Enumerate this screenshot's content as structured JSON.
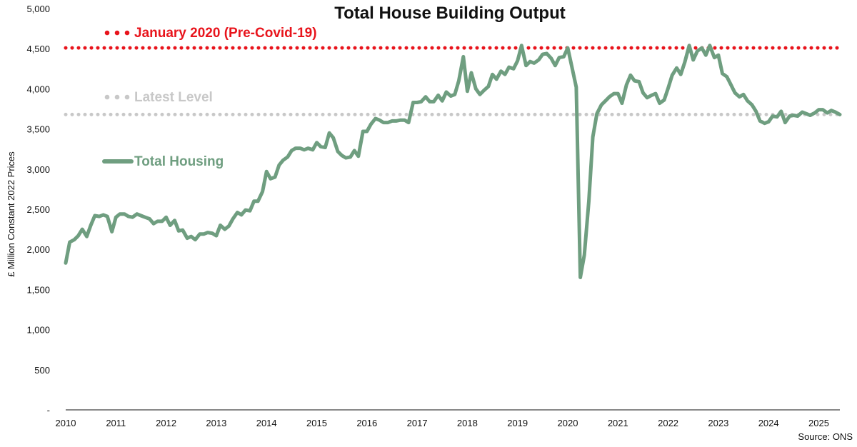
{
  "chart_data": {
    "type": "line",
    "title": "Total House Building Output",
    "ylabel": "£ Million Constant 2022 Prices",
    "xlabel": "",
    "ylim": [
      0,
      5000
    ],
    "xlim": [
      2010,
      2025.42
    ],
    "y_ticks": [
      {
        "value": 0,
        "label": "-"
      },
      {
        "value": 500,
        "label": "500"
      },
      {
        "value": 1000,
        "label": "1,000"
      },
      {
        "value": 1500,
        "label": "1,500"
      },
      {
        "value": 2000,
        "label": "2,000"
      },
      {
        "value": 2500,
        "label": "2,500"
      },
      {
        "value": 3000,
        "label": "3,000"
      },
      {
        "value": 3500,
        "label": "3,500"
      },
      {
        "value": 4000,
        "label": "4,000"
      },
      {
        "value": 4500,
        "label": "4,500"
      },
      {
        "value": 5000,
        "label": "5,000"
      }
    ],
    "x_ticks": [
      {
        "value": 2010,
        "label": "2010"
      },
      {
        "value": 2011,
        "label": "2011"
      },
      {
        "value": 2012,
        "label": "2012"
      },
      {
        "value": 2013,
        "label": "2013"
      },
      {
        "value": 2014,
        "label": "2014"
      },
      {
        "value": 2015,
        "label": "2015"
      },
      {
        "value": 2016,
        "label": "2016"
      },
      {
        "value": 2017,
        "label": "2017"
      },
      {
        "value": 2018,
        "label": "2018"
      },
      {
        "value": 2019,
        "label": "2019"
      },
      {
        "value": 2020,
        "label": "2020"
      },
      {
        "value": 2021,
        "label": "2021"
      },
      {
        "value": 2022,
        "label": "2022"
      },
      {
        "value": 2023,
        "label": "2023"
      },
      {
        "value": 2024,
        "label": "2024"
      },
      {
        "value": 2025,
        "label": "2025"
      }
    ],
    "reference_lines": [
      {
        "name": "January 2020 (Pre-Covid-19)",
        "value": 4510,
        "color": "#e8141c",
        "style": "dotted"
      },
      {
        "name": "Latest Level",
        "value": 3680,
        "color": "#c8c8c8",
        "style": "dotted"
      }
    ],
    "series": [
      {
        "name": "Total Housing",
        "color": "#6f9e80",
        "points": [
          [
            2010.0,
            1830
          ],
          [
            2010.08,
            2090
          ],
          [
            2010.17,
            2120
          ],
          [
            2010.25,
            2170
          ],
          [
            2010.33,
            2250
          ],
          [
            2010.42,
            2160
          ],
          [
            2010.5,
            2300
          ],
          [
            2010.58,
            2420
          ],
          [
            2010.67,
            2410
          ],
          [
            2010.75,
            2430
          ],
          [
            2010.83,
            2410
          ],
          [
            2010.92,
            2220
          ],
          [
            2011.0,
            2400
          ],
          [
            2011.08,
            2440
          ],
          [
            2011.17,
            2440
          ],
          [
            2011.25,
            2410
          ],
          [
            2011.33,
            2400
          ],
          [
            2011.42,
            2440
          ],
          [
            2011.5,
            2420
          ],
          [
            2011.58,
            2400
          ],
          [
            2011.67,
            2380
          ],
          [
            2011.75,
            2320
          ],
          [
            2011.83,
            2350
          ],
          [
            2011.92,
            2350
          ],
          [
            2012.0,
            2400
          ],
          [
            2012.08,
            2300
          ],
          [
            2012.17,
            2360
          ],
          [
            2012.25,
            2230
          ],
          [
            2012.33,
            2240
          ],
          [
            2012.42,
            2140
          ],
          [
            2012.5,
            2160
          ],
          [
            2012.58,
            2120
          ],
          [
            2012.67,
            2190
          ],
          [
            2012.75,
            2190
          ],
          [
            2012.83,
            2210
          ],
          [
            2012.92,
            2200
          ],
          [
            2013.0,
            2170
          ],
          [
            2013.08,
            2300
          ],
          [
            2013.17,
            2250
          ],
          [
            2013.25,
            2290
          ],
          [
            2013.33,
            2380
          ],
          [
            2013.42,
            2460
          ],
          [
            2013.5,
            2430
          ],
          [
            2013.58,
            2490
          ],
          [
            2013.67,
            2480
          ],
          [
            2013.75,
            2600
          ],
          [
            2013.83,
            2600
          ],
          [
            2013.92,
            2720
          ],
          [
            2014.0,
            2970
          ],
          [
            2014.08,
            2880
          ],
          [
            2014.17,
            2900
          ],
          [
            2014.25,
            3050
          ],
          [
            2014.33,
            3110
          ],
          [
            2014.42,
            3150
          ],
          [
            2014.5,
            3230
          ],
          [
            2014.58,
            3260
          ],
          [
            2014.67,
            3260
          ],
          [
            2014.75,
            3240
          ],
          [
            2014.83,
            3260
          ],
          [
            2014.92,
            3240
          ],
          [
            2015.0,
            3330
          ],
          [
            2015.08,
            3280
          ],
          [
            2015.17,
            3270
          ],
          [
            2015.25,
            3450
          ],
          [
            2015.33,
            3390
          ],
          [
            2015.42,
            3220
          ],
          [
            2015.5,
            3170
          ],
          [
            2015.58,
            3140
          ],
          [
            2015.67,
            3150
          ],
          [
            2015.75,
            3230
          ],
          [
            2015.83,
            3160
          ],
          [
            2015.92,
            3470
          ],
          [
            2016.0,
            3470
          ],
          [
            2016.08,
            3560
          ],
          [
            2016.17,
            3630
          ],
          [
            2016.25,
            3610
          ],
          [
            2016.33,
            3580
          ],
          [
            2016.42,
            3580
          ],
          [
            2016.5,
            3600
          ],
          [
            2016.58,
            3600
          ],
          [
            2016.67,
            3610
          ],
          [
            2016.75,
            3610
          ],
          [
            2016.83,
            3580
          ],
          [
            2016.92,
            3830
          ],
          [
            2017.0,
            3830
          ],
          [
            2017.08,
            3840
          ],
          [
            2017.17,
            3900
          ],
          [
            2017.25,
            3840
          ],
          [
            2017.33,
            3840
          ],
          [
            2017.42,
            3920
          ],
          [
            2017.5,
            3850
          ],
          [
            2017.58,
            3960
          ],
          [
            2017.67,
            3910
          ],
          [
            2017.75,
            3930
          ],
          [
            2017.83,
            4100
          ],
          [
            2017.92,
            4400
          ],
          [
            2018.0,
            3970
          ],
          [
            2018.08,
            4200
          ],
          [
            2018.17,
            4000
          ],
          [
            2018.25,
            3930
          ],
          [
            2018.33,
            3980
          ],
          [
            2018.42,
            4030
          ],
          [
            2018.5,
            4180
          ],
          [
            2018.58,
            4120
          ],
          [
            2018.67,
            4220
          ],
          [
            2018.75,
            4180
          ],
          [
            2018.83,
            4270
          ],
          [
            2018.92,
            4250
          ],
          [
            2019.0,
            4350
          ],
          [
            2019.08,
            4540
          ],
          [
            2019.17,
            4290
          ],
          [
            2019.25,
            4340
          ],
          [
            2019.33,
            4320
          ],
          [
            2019.42,
            4360
          ],
          [
            2019.5,
            4430
          ],
          [
            2019.58,
            4440
          ],
          [
            2019.67,
            4380
          ],
          [
            2019.75,
            4290
          ],
          [
            2019.83,
            4390
          ],
          [
            2019.92,
            4400
          ],
          [
            2020.0,
            4510
          ],
          [
            2020.08,
            4280
          ],
          [
            2020.17,
            4020
          ],
          [
            2020.25,
            1650
          ],
          [
            2020.33,
            1930
          ],
          [
            2020.42,
            2600
          ],
          [
            2020.5,
            3400
          ],
          [
            2020.58,
            3690
          ],
          [
            2020.67,
            3800
          ],
          [
            2020.75,
            3850
          ],
          [
            2020.83,
            3900
          ],
          [
            2020.92,
            3940
          ],
          [
            2021.0,
            3940
          ],
          [
            2021.08,
            3820
          ],
          [
            2021.17,
            4050
          ],
          [
            2021.25,
            4170
          ],
          [
            2021.33,
            4100
          ],
          [
            2021.42,
            4090
          ],
          [
            2021.5,
            3950
          ],
          [
            2021.58,
            3890
          ],
          [
            2021.67,
            3920
          ],
          [
            2021.75,
            3940
          ],
          [
            2021.83,
            3820
          ],
          [
            2021.92,
            3860
          ],
          [
            2022.0,
            4010
          ],
          [
            2022.08,
            4170
          ],
          [
            2022.17,
            4260
          ],
          [
            2022.25,
            4180
          ],
          [
            2022.33,
            4330
          ],
          [
            2022.42,
            4540
          ],
          [
            2022.5,
            4360
          ],
          [
            2022.58,
            4470
          ],
          [
            2022.67,
            4510
          ],
          [
            2022.75,
            4420
          ],
          [
            2022.83,
            4540
          ],
          [
            2022.92,
            4390
          ],
          [
            2023.0,
            4420
          ],
          [
            2023.08,
            4190
          ],
          [
            2023.17,
            4150
          ],
          [
            2023.25,
            4050
          ],
          [
            2023.33,
            3950
          ],
          [
            2023.42,
            3900
          ],
          [
            2023.5,
            3930
          ],
          [
            2023.58,
            3850
          ],
          [
            2023.67,
            3800
          ],
          [
            2023.75,
            3720
          ],
          [
            2023.83,
            3600
          ],
          [
            2023.92,
            3570
          ],
          [
            2024.0,
            3590
          ],
          [
            2024.08,
            3660
          ],
          [
            2024.17,
            3650
          ],
          [
            2024.25,
            3720
          ],
          [
            2024.33,
            3580
          ],
          [
            2024.42,
            3660
          ],
          [
            2024.5,
            3670
          ],
          [
            2024.58,
            3660
          ],
          [
            2024.67,
            3710
          ],
          [
            2024.75,
            3690
          ],
          [
            2024.83,
            3670
          ],
          [
            2024.92,
            3700
          ],
          [
            2025.0,
            3740
          ],
          [
            2025.08,
            3740
          ],
          [
            2025.17,
            3700
          ],
          [
            2025.25,
            3730
          ],
          [
            2025.33,
            3710
          ],
          [
            2025.42,
            3680
          ]
        ]
      }
    ],
    "legend": [
      {
        "label": "January 2020 (Pre-Covid-19)",
        "color": "#e8141c",
        "marker": "dots"
      },
      {
        "label": "Latest Level",
        "color": "#c8c8c8",
        "marker": "dots"
      },
      {
        "label": "Total Housing",
        "color": "#6f9e80",
        "marker": "line"
      }
    ],
    "source": "Source: ONS",
    "grid": false
  }
}
